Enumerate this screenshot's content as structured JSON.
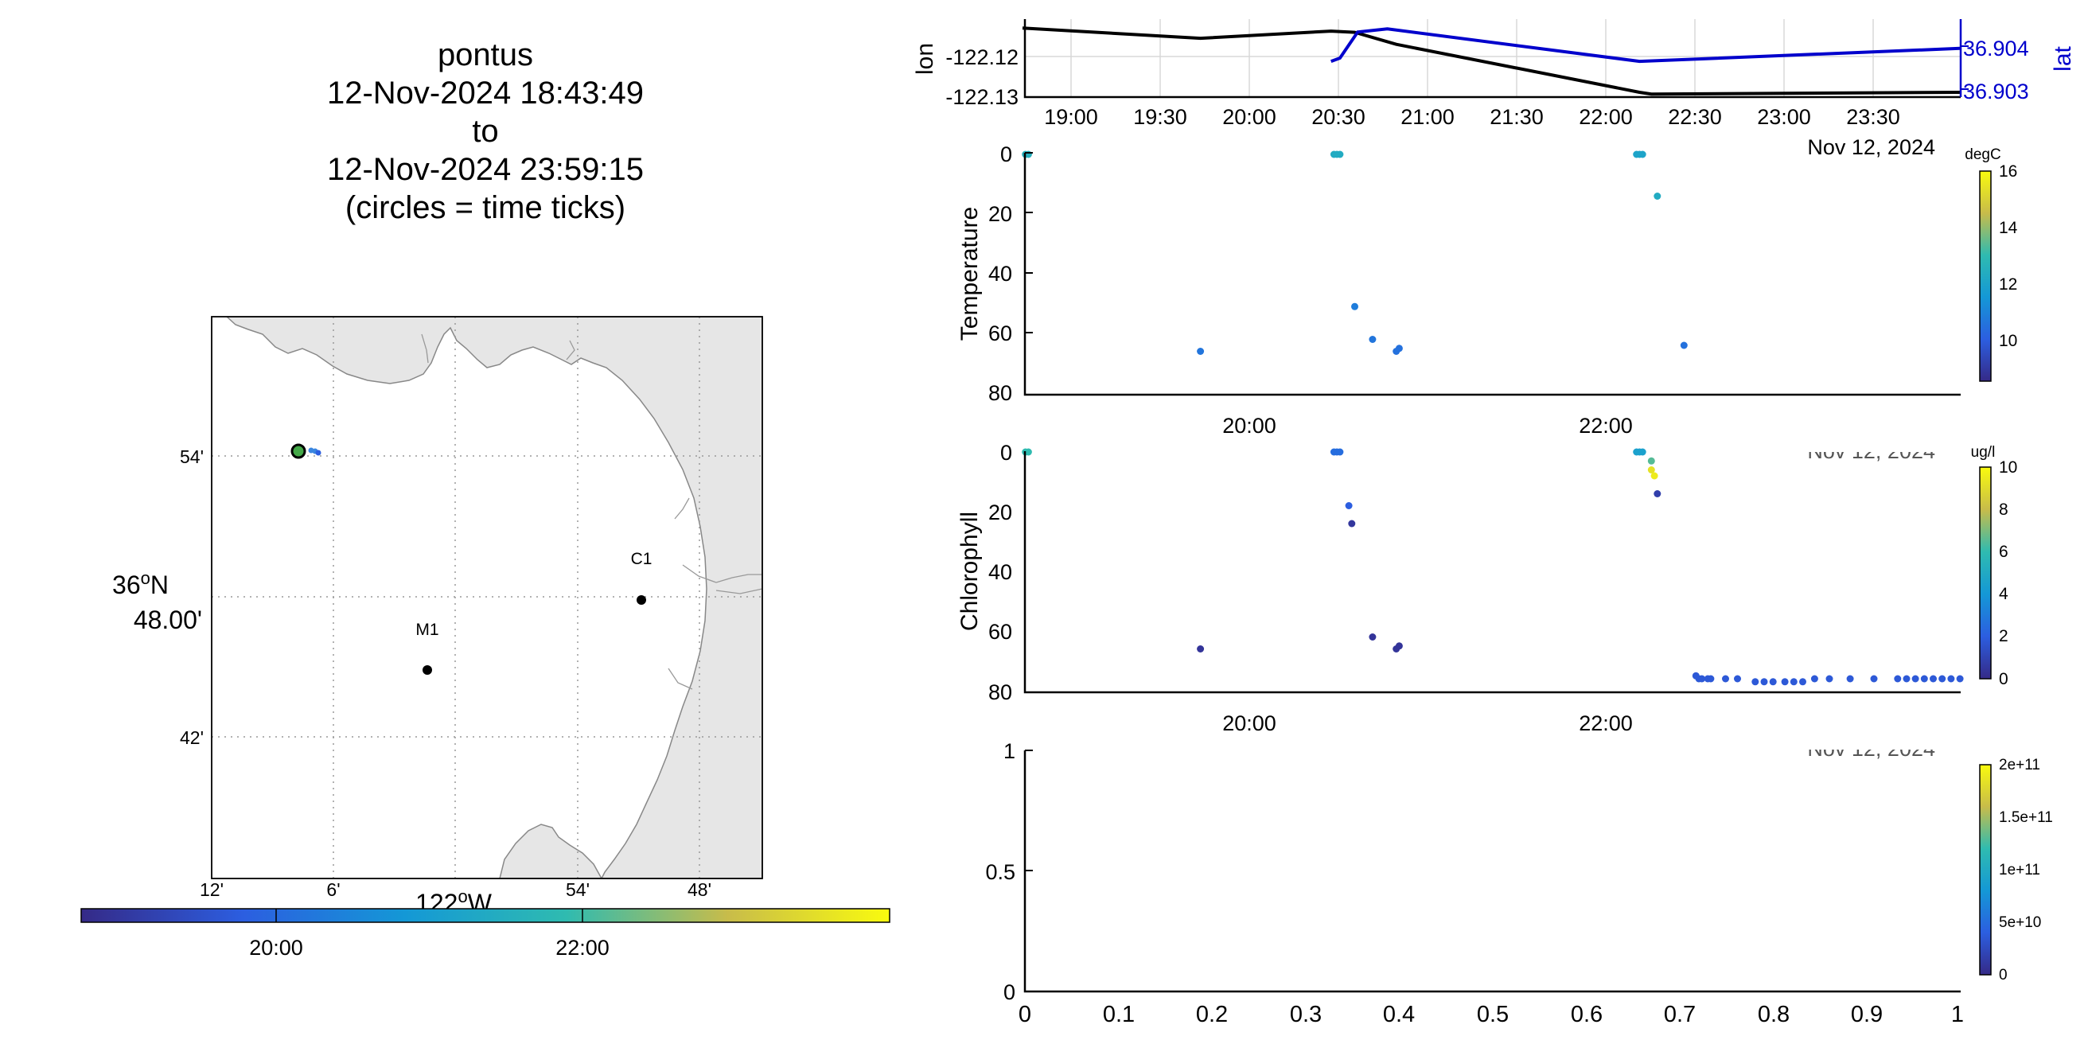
{
  "title": {
    "vehicle": "pontus",
    "start": "12-Nov-2024 18:43:49",
    "to": "to",
    "end": "12-Nov-2024 23:59:15",
    "note": "(circles = time ticks)"
  },
  "map": {
    "lat_ticks": [
      "54'",
      "42'"
    ],
    "lat_center_deg": "36",
    "lat_center_min": "48.00'",
    "lat_center_hemi": "N",
    "lon_ticks": [
      "12'",
      "6'",
      "54'",
      "48'"
    ],
    "lon_center_deg": "122",
    "lon_center_hemi": "W",
    "stations": [
      {
        "label": "M1"
      },
      {
        "label": "C1"
      }
    ],
    "track_points": [
      {
        "lon": -122.226,
        "lat": 36.9035,
        "time": "18:44",
        "color": "#44a848"
      },
      {
        "lon": -122.219,
        "lat": 36.9033,
        "time": "20:40",
        "color": "#3a86e0"
      },
      {
        "lon": -122.216,
        "lat": 36.9031,
        "time": "20:50",
        "color": "#3a86e0"
      },
      {
        "lon": -122.214,
        "lat": 36.903,
        "time": "21:00",
        "color": "#3a86e0"
      }
    ],
    "time_colorbar": {
      "ticks": [
        "20:00",
        "22:00"
      ],
      "range": [
        "18:43:49",
        "23:59:15"
      ]
    },
    "colors": {
      "land": "#e6e6e6",
      "coast": "#888888"
    }
  },
  "charts": {
    "navigation": {
      "ylabel_left": "lon",
      "ylabel_right": "lat",
      "yticks_left": [
        "-122.12",
        "-122.13"
      ],
      "yticks_right": [
        "36.904",
        "36.903"
      ],
      "xticks": [
        "19:00",
        "19:30",
        "20:00",
        "20:30",
        "21:00",
        "21:30",
        "22:00",
        "22:30",
        "23:00",
        "23:30"
      ],
      "date_label": "Nov 12, 2024",
      "colors": {
        "lon": "#000000",
        "lat": "#0000cc"
      }
    },
    "temperature": {
      "ylabel": "Temperature",
      "yticks": [
        "0",
        "20",
        "40",
        "60",
        "80"
      ],
      "xticks": [
        "20:00",
        "22:00"
      ],
      "colorbar": {
        "label": "degC",
        "ticks": [
          "16",
          "14",
          "12",
          "10"
        ],
        "range": [
          8.5,
          16
        ]
      }
    },
    "chlorophyll": {
      "ylabel": "Chlorophyll",
      "yticks": [
        "0",
        "20",
        "40",
        "60",
        "80"
      ],
      "xticks": [
        "20:00",
        "22:00"
      ],
      "date_label": "Nov 12, 2024",
      "colorbar": {
        "label": "ug/l",
        "ticks": [
          "10",
          "8",
          "6",
          "4",
          "2",
          "0"
        ],
        "range": [
          0,
          10
        ]
      }
    },
    "empty": {
      "yticks": [
        "1",
        "0.5",
        "0"
      ],
      "xticks": [
        "0",
        "0.1",
        "0.2",
        "0.3",
        "0.4",
        "0.5",
        "0.6",
        "0.7",
        "0.8",
        "0.9",
        "1"
      ],
      "date_label": "Nov 12, 2024",
      "colorbar": {
        "label": "",
        "ticks": [
          "2e+11",
          "1.5e+11",
          "1e+11",
          "5e+10",
          "0"
        ],
        "range": [
          0,
          200000000000.0
        ]
      }
    }
  },
  "chart_data": [
    {
      "type": "line",
      "name": "navigation",
      "x_range": [
        "18:43:49",
        "23:59:15"
      ],
      "series": [
        {
          "name": "lon",
          "axis": "left",
          "ylim": [
            -122.1305,
            -122.1175
          ],
          "points": [
            [
              "18:43",
              -122.119
            ],
            [
              "19:43",
              -122.1207
            ],
            [
              "20:27",
              -122.1195
            ],
            [
              "20:35",
              -122.1197
            ],
            [
              "20:49",
              -122.1217
            ],
            [
              "22:11",
              -122.1297
            ],
            [
              "22:15",
              -122.13
            ],
            [
              "23:59",
              -122.1297
            ]
          ]
        },
        {
          "name": "lat",
          "axis": "right",
          "ylim": [
            36.9026,
            36.905
          ],
          "points": [
            [
              "20:27",
              36.9037
            ],
            [
              "20:30",
              36.9038
            ],
            [
              "20:36",
              36.9046
            ],
            [
              "20:46",
              36.9047
            ],
            [
              "22:11",
              36.9037
            ],
            [
              "23:59",
              36.9041
            ]
          ]
        }
      ]
    },
    {
      "type": "scatter",
      "name": "temperature",
      "x_range": [
        "18:43:49",
        "23:59:15"
      ],
      "ylim": [
        80,
        0
      ],
      "points": [
        {
          "x": "18:44",
          "y": 0,
          "value": 12.5
        },
        {
          "x": "18:45",
          "y": 0,
          "value": 12.5
        },
        {
          "x": "20:28",
          "y": 0,
          "value": 12.3
        },
        {
          "x": "20:29",
          "y": 0,
          "value": 12.3
        },
        {
          "x": "20:30",
          "y": 0,
          "value": 12.3
        },
        {
          "x": "22:10",
          "y": 0,
          "value": 12.0
        },
        {
          "x": "22:11",
          "y": 0,
          "value": 12.0
        },
        {
          "x": "22:12",
          "y": 0,
          "value": 12.0
        },
        {
          "x": "22:17",
          "y": 14,
          "value": 12.3
        },
        {
          "x": "19:43",
          "y": 66,
          "value": 10.6
        },
        {
          "x": "20:35",
          "y": 51,
          "value": 10.8
        },
        {
          "x": "20:41",
          "y": 62,
          "value": 10.6
        },
        {
          "x": "20:49",
          "y": 66,
          "value": 10.5
        },
        {
          "x": "20:50",
          "y": 65,
          "value": 10.5
        },
        {
          "x": "22:26",
          "y": 64,
          "value": 10.5
        }
      ]
    },
    {
      "type": "scatter",
      "name": "chlorophyll",
      "x_range": [
        "18:43:49",
        "23:59:15"
      ],
      "ylim": [
        80,
        0
      ],
      "points": [
        {
          "x": "18:44",
          "y": 0,
          "value": 6.0
        },
        {
          "x": "18:45",
          "y": 0,
          "value": 6.0
        },
        {
          "x": "20:28",
          "y": 0,
          "value": 2.5
        },
        {
          "x": "20:29",
          "y": 0,
          "value": 2.5
        },
        {
          "x": "20:30",
          "y": 0,
          "value": 2.5
        },
        {
          "x": "22:10",
          "y": 0,
          "value": 4.5
        },
        {
          "x": "22:11",
          "y": 0,
          "value": 4.5
        },
        {
          "x": "22:12",
          "y": 0,
          "value": 4.5
        },
        {
          "x": "22:15",
          "y": 3,
          "value": 6.5
        },
        {
          "x": "22:15",
          "y": 6,
          "value": 9.2
        },
        {
          "x": "22:16",
          "y": 8,
          "value": 9.5
        },
        {
          "x": "22:17",
          "y": 14,
          "value": 0.8
        },
        {
          "x": "20:33",
          "y": 18,
          "value": 2.0
        },
        {
          "x": "20:34",
          "y": 24,
          "value": 0.5
        },
        {
          "x": "19:43",
          "y": 66,
          "value": 0.4
        },
        {
          "x": "20:41",
          "y": 62,
          "value": 0.4
        },
        {
          "x": "20:49",
          "y": 66,
          "value": 0.4
        },
        {
          "x": "20:50",
          "y": 65,
          "value": 0.4
        },
        {
          "x": "22:30",
          "y": 75,
          "value": 1.8
        },
        {
          "x": "22:31",
          "y": 76,
          "value": 1.8
        },
        {
          "x": "22:32",
          "y": 76,
          "value": 1.8
        },
        {
          "x": "22:34",
          "y": 76,
          "value": 1.8
        },
        {
          "x": "22:35",
          "y": 76,
          "value": 1.8
        },
        {
          "x": "22:40",
          "y": 76,
          "value": 1.8
        },
        {
          "x": "22:44",
          "y": 76,
          "value": 1.8
        },
        {
          "x": "22:50",
          "y": 77,
          "value": 1.8
        },
        {
          "x": "22:53",
          "y": 77,
          "value": 1.8
        },
        {
          "x": "22:56",
          "y": 77,
          "value": 1.8
        },
        {
          "x": "23:00",
          "y": 77,
          "value": 1.8
        },
        {
          "x": "23:03",
          "y": 77,
          "value": 1.8
        },
        {
          "x": "23:06",
          "y": 77,
          "value": 1.8
        },
        {
          "x": "23:10",
          "y": 76,
          "value": 1.8
        },
        {
          "x": "23:15",
          "y": 76,
          "value": 1.8
        },
        {
          "x": "23:22",
          "y": 76,
          "value": 1.8
        },
        {
          "x": "23:30",
          "y": 76,
          "value": 1.8
        },
        {
          "x": "23:38",
          "y": 76,
          "value": 1.8
        },
        {
          "x": "23:41",
          "y": 76,
          "value": 1.8
        },
        {
          "x": "23:44",
          "y": 76,
          "value": 1.8
        },
        {
          "x": "23:47",
          "y": 76,
          "value": 1.8
        },
        {
          "x": "23:50",
          "y": 76,
          "value": 1.8
        },
        {
          "x": "23:53",
          "y": 76,
          "value": 1.8
        },
        {
          "x": "23:56",
          "y": 76,
          "value": 1.8
        },
        {
          "x": "23:59",
          "y": 76,
          "value": 1.8
        }
      ]
    },
    {
      "type": "scatter",
      "name": "empty",
      "xlim": [
        0,
        1
      ],
      "ylim": [
        0,
        1
      ],
      "points": []
    }
  ]
}
